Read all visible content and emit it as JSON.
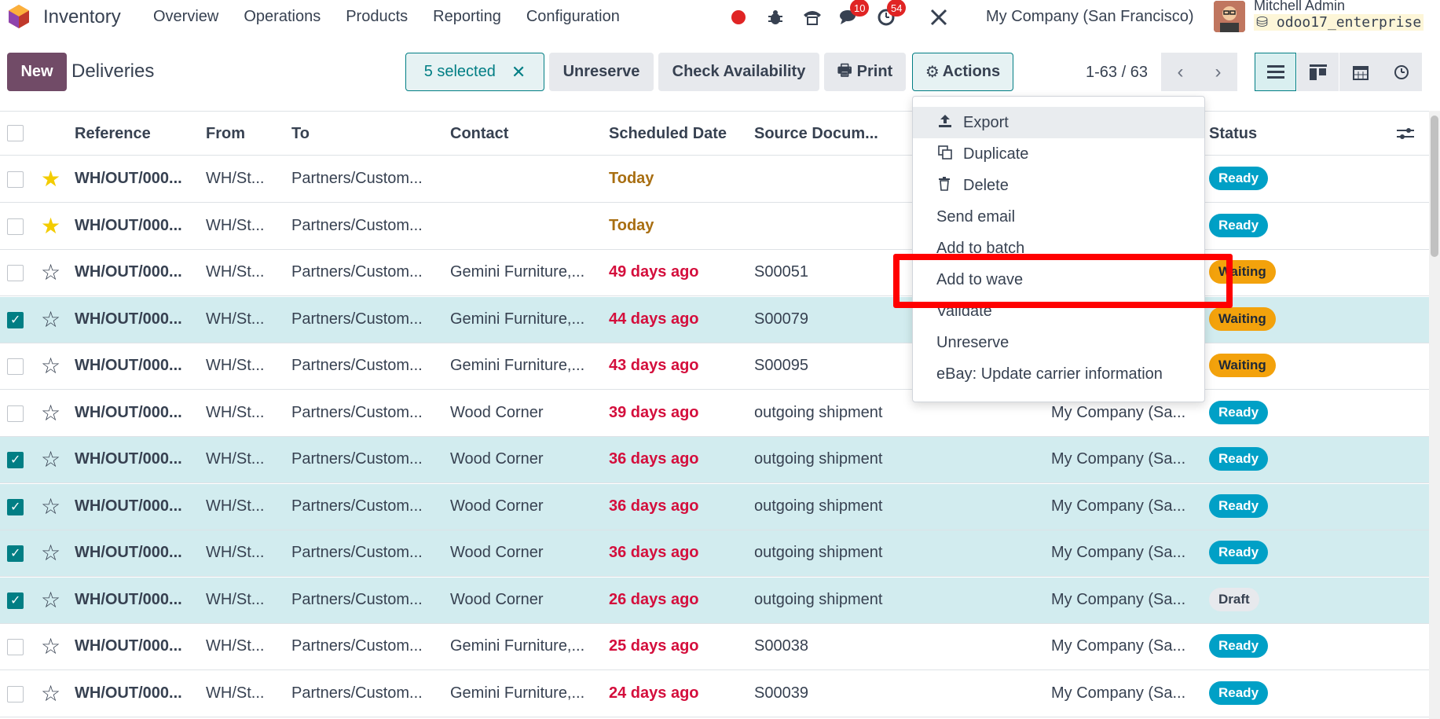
{
  "navbar": {
    "app_name": "Inventory",
    "menu": [
      "Overview",
      "Operations",
      "Products",
      "Reporting",
      "Configuration"
    ],
    "messages_badge": "10",
    "activity_badge": "54",
    "company": "My Company (San Francisco)",
    "user_name": "Mitchell Admin",
    "db_name": "odoo17_enterprise",
    "icons": [
      "record-icon",
      "bug-icon",
      "phone-icon",
      "chat-icon",
      "clock-icon",
      "tools-icon"
    ]
  },
  "control": {
    "new_label": "New",
    "breadcrumb": "Deliveries",
    "selected_label": "5 selected",
    "unreserve_label": "Unreserve",
    "check_availability_label": "Check Availability",
    "print_label": "Print",
    "actions_label": "Actions",
    "pager": "1-63 / 63"
  },
  "columns": [
    "Reference",
    "From",
    "To",
    "Contact",
    "Scheduled Date",
    "Source Docum...",
    "Status"
  ],
  "rows": [
    {
      "checked": false,
      "starred": true,
      "ref": "WH/OUT/000...",
      "from": "WH/St...",
      "to": "Partners/Custom...",
      "contact": "",
      "date": "Today",
      "date_type": "today",
      "source": "",
      "company": "",
      "status": "Ready"
    },
    {
      "checked": false,
      "starred": true,
      "ref": "WH/OUT/000...",
      "from": "WH/St...",
      "to": "Partners/Custom...",
      "contact": "",
      "date": "Today",
      "date_type": "today",
      "source": "",
      "company": "",
      "status": "Ready"
    },
    {
      "checked": false,
      "starred": false,
      "ref": "WH/OUT/000...",
      "from": "WH/St...",
      "to": "Partners/Custom...",
      "contact": "Gemini Furniture,...",
      "date": "49 days ago",
      "date_type": "late",
      "source": "S00051",
      "company": "",
      "status": "Waiting"
    },
    {
      "checked": true,
      "starred": false,
      "ref": "WH/OUT/000...",
      "from": "WH/St...",
      "to": "Partners/Custom...",
      "contact": "Gemini Furniture,...",
      "date": "44 days ago",
      "date_type": "late",
      "source": "S00079",
      "company": "",
      "status": "Waiting"
    },
    {
      "checked": false,
      "starred": false,
      "ref": "WH/OUT/000...",
      "from": "WH/St...",
      "to": "Partners/Custom...",
      "contact": "Gemini Furniture,...",
      "date": "43 days ago",
      "date_type": "late",
      "source": "S00095",
      "company": "",
      "status": "Waiting"
    },
    {
      "checked": false,
      "starred": false,
      "ref": "WH/OUT/000...",
      "from": "WH/St...",
      "to": "Partners/Custom...",
      "contact": "Wood Corner",
      "date": "39 days ago",
      "date_type": "late",
      "source": "outgoing shipment",
      "company": "My Company (Sa...",
      "status": "Ready"
    },
    {
      "checked": true,
      "starred": false,
      "ref": "WH/OUT/000...",
      "from": "WH/St...",
      "to": "Partners/Custom...",
      "contact": "Wood Corner",
      "date": "36 days ago",
      "date_type": "late",
      "source": "outgoing shipment",
      "company": "My Company (Sa...",
      "status": "Ready"
    },
    {
      "checked": true,
      "starred": false,
      "ref": "WH/OUT/000...",
      "from": "WH/St...",
      "to": "Partners/Custom...",
      "contact": "Wood Corner",
      "date": "36 days ago",
      "date_type": "late",
      "source": "outgoing shipment",
      "company": "My Company (Sa...",
      "status": "Ready"
    },
    {
      "checked": true,
      "starred": false,
      "ref": "WH/OUT/000...",
      "from": "WH/St...",
      "to": "Partners/Custom...",
      "contact": "Wood Corner",
      "date": "36 days ago",
      "date_type": "late",
      "source": "outgoing shipment",
      "company": "My Company (Sa...",
      "status": "Ready"
    },
    {
      "checked": true,
      "starred": false,
      "ref": "WH/OUT/000...",
      "from": "WH/St...",
      "to": "Partners/Custom...",
      "contact": "Wood Corner",
      "date": "26 days ago",
      "date_type": "late",
      "source": "outgoing shipment",
      "company": "My Company (Sa...",
      "status": "Draft"
    },
    {
      "checked": false,
      "starred": false,
      "ref": "WH/OUT/000...",
      "from": "WH/St...",
      "to": "Partners/Custom...",
      "contact": "Gemini Furniture,...",
      "date": "25 days ago",
      "date_type": "late",
      "source": "S00038",
      "company": "My Company (Sa...",
      "status": "Ready"
    },
    {
      "checked": false,
      "starred": false,
      "ref": "WH/OUT/000...",
      "from": "WH/St...",
      "to": "Partners/Custom...",
      "contact": "Gemini Furniture,...",
      "date": "24 days ago",
      "date_type": "late",
      "source": "S00039",
      "company": "My Company (Sa...",
      "status": "Ready"
    }
  ],
  "actions_menu": [
    {
      "label": "Export",
      "icon": "upload-icon"
    },
    {
      "label": "Duplicate",
      "icon": "copy-icon"
    },
    {
      "label": "Delete",
      "icon": "trash-icon"
    },
    {
      "label": "Send email",
      "icon": ""
    },
    {
      "label": "Add to batch",
      "icon": ""
    },
    {
      "label": "Add to wave",
      "icon": ""
    },
    {
      "label": "Validate",
      "icon": ""
    },
    {
      "label": "Unreserve",
      "icon": ""
    },
    {
      "label": "eBay: Update carrier information",
      "icon": ""
    }
  ],
  "colors": {
    "brand": "#714b67",
    "teal": "#017e84",
    "ready": "#00a0c6",
    "waiting": "#f3a20c",
    "late": "#d40e3c",
    "today": "#a86e11",
    "highlight": "#ff0000"
  }
}
